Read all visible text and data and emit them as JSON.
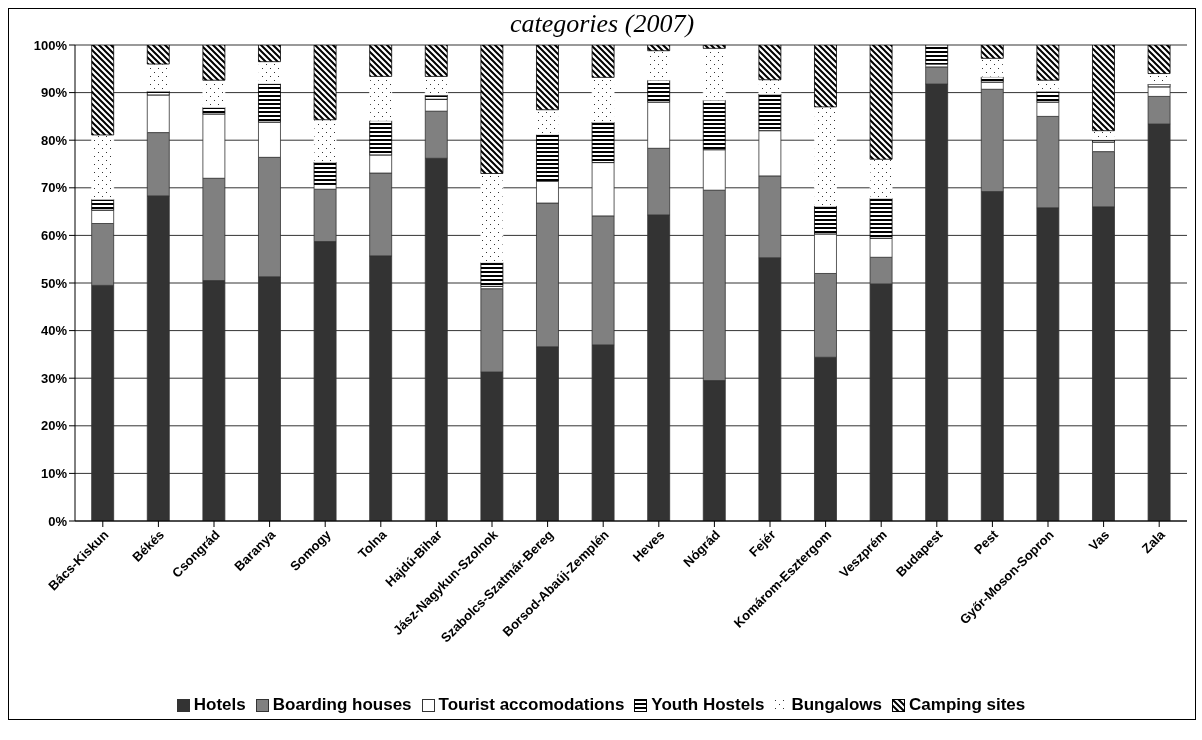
{
  "chart_data": {
    "type": "bar",
    "title": "categories (2007)",
    "stacked": true,
    "categories": [
      "Bács-Kiskun",
      "Békés",
      "Csongrád",
      "Baranya",
      "Somogy",
      "Tolna",
      "Hajdú-Bihar",
      "Jász-Nagykun-Szolnok",
      "Szabolcs-Szatmár-Bereg",
      "Borsod-Abaúj-Zemplén",
      "Heves",
      "Nógrád",
      "Fejér",
      "Komárom-Esztergom",
      "Veszprém",
      "Budapest",
      "Pest",
      "Győr-Moson-Sopron",
      "Vas",
      "Zala"
    ],
    "series": [
      {
        "name": "Hotels",
        "color": "#333333",
        "values": [
          49.5,
          68.3,
          50.5,
          51.3,
          58.7,
          55.7,
          76.2,
          31.3,
          36.6,
          37.0,
          64.3,
          29.5,
          55.3,
          34.4,
          49.8,
          91.8,
          69.2,
          65.8,
          66.0,
          83.4
        ]
      },
      {
        "name": "Boarding houses",
        "color": "#808080",
        "values": [
          13.0,
          13.3,
          21.5,
          25.1,
          11.0,
          17.4,
          9.9,
          17.5,
          30.2,
          27.1,
          14.0,
          40.0,
          17.2,
          17.6,
          5.6,
          3.6,
          21.5,
          19.2,
          11.6,
          5.8
        ]
      },
      {
        "name": "Tourist accomodations",
        "color": "#ffffff",
        "values": [
          2.8,
          7.9,
          13.5,
          7.4,
          1.0,
          3.8,
          2.5,
          0.5,
          4.6,
          11.2,
          9.7,
          8.5,
          9.5,
          8.3,
          4.0,
          0.6,
          1.5,
          3.0,
          2.0,
          2.0
        ]
      },
      {
        "name": "Youth Hostels",
        "color": "#000000",
        "values": [
          2.3,
          0.8,
          1.4,
          8.1,
          4.7,
          7.2,
          0.9,
          5.0,
          9.8,
          8.5,
          4.6,
          10.4,
          7.7,
          5.9,
          8.4,
          4.0,
          1.1,
          2.3,
          0.5,
          0.6
        ]
      },
      {
        "name": "Bungalows",
        "color": "#ffffff",
        "values": [
          13.5,
          5.7,
          5.7,
          4.6,
          8.9,
          9.3,
          3.9,
          18.7,
          5.2,
          9.4,
          6.2,
          10.9,
          3.0,
          20.8,
          8.2,
          0,
          3.9,
          2.3,
          1.9,
          2.2
        ]
      },
      {
        "name": "Camping sites",
        "color": "#000000",
        "values": [
          18.9,
          4.0,
          7.4,
          3.5,
          15.7,
          6.6,
          6.6,
          27.0,
          13.6,
          6.8,
          1.2,
          0.7,
          7.3,
          13.0,
          24.0,
          0,
          2.8,
          7.4,
          18.0,
          6.0
        ]
      }
    ],
    "ylim": [
      0,
      100
    ],
    "yticks": [
      {
        "value": 0,
        "label": "0%"
      },
      {
        "value": 10,
        "label": "10%"
      },
      {
        "value": 20,
        "label": "20%"
      },
      {
        "value": 30,
        "label": "30%"
      },
      {
        "value": 40,
        "label": "40%"
      },
      {
        "value": 50,
        "label": "50%"
      },
      {
        "value": 60,
        "label": "60%"
      },
      {
        "value": 70,
        "label": "70%"
      },
      {
        "value": 80,
        "label": "80%"
      },
      {
        "value": 90,
        "label": "90%"
      },
      {
        "value": 100,
        "label": "100%"
      }
    ],
    "grid": "y",
    "legend": "bottom"
  }
}
